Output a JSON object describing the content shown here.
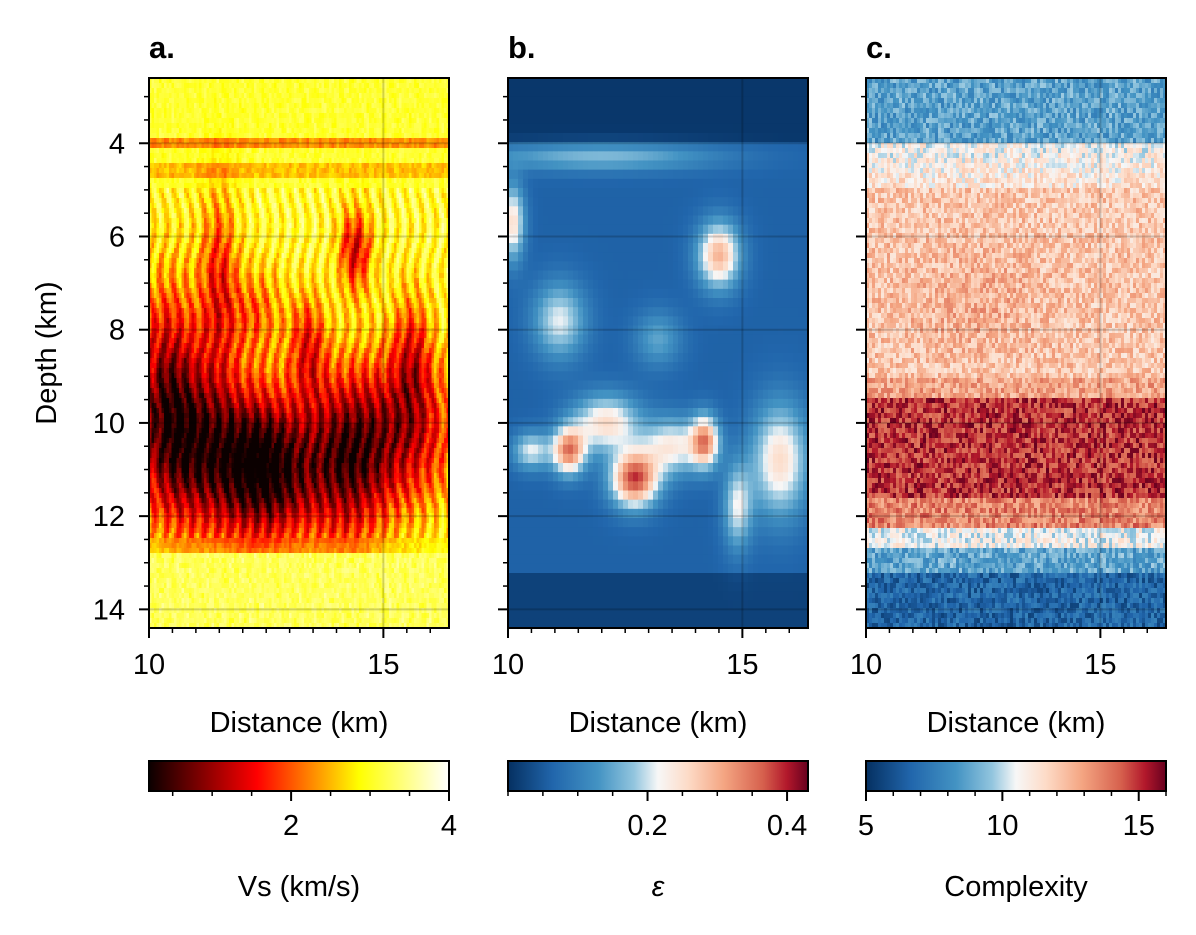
{
  "chart_data": [
    {
      "type": "heatmap",
      "panel_label": "a.",
      "xlabel": "Distance (km)",
      "ylabel": "Depth (km)",
      "xlim": [
        10,
        16.4
      ],
      "ylim": [
        14.4,
        2.6
      ],
      "x_ticks": [
        10,
        15
      ],
      "y_ticks": [
        4,
        6,
        8,
        10,
        12,
        14
      ],
      "grid": true,
      "colormap": "hot",
      "colorbar": {
        "label": "Vs (km/s)",
        "range": [
          0.2,
          4
        ],
        "ticks": [
          2,
          4
        ]
      }
    },
    {
      "type": "heatmap",
      "panel_label": "b.",
      "xlabel": "Distance (km)",
      "ylabel": "",
      "xlim": [
        10,
        16.4
      ],
      "ylim": [
        14.4,
        2.6
      ],
      "x_ticks": [
        10,
        15
      ],
      "y_ticks": [
        4,
        6,
        8,
        10,
        12,
        14
      ],
      "grid": true,
      "colormap": "RdBu_r",
      "colorbar": {
        "label": "ε",
        "range": [
          0.0,
          0.43
        ],
        "ticks": [
          0.2,
          0.4
        ]
      }
    },
    {
      "type": "heatmap",
      "panel_label": "c.",
      "xlabel": "Distance (km)",
      "ylabel": "",
      "xlim": [
        10,
        16.4
      ],
      "ylim": [
        14.4,
        2.6
      ],
      "x_ticks": [
        10,
        15
      ],
      "y_ticks": [
        4,
        6,
        8,
        10,
        12,
        14
      ],
      "grid": true,
      "colormap": "RdBu_r",
      "colorbar": {
        "label": "Complexity",
        "range": [
          5,
          16
        ],
        "ticks": [
          5,
          10,
          15
        ]
      }
    }
  ]
}
